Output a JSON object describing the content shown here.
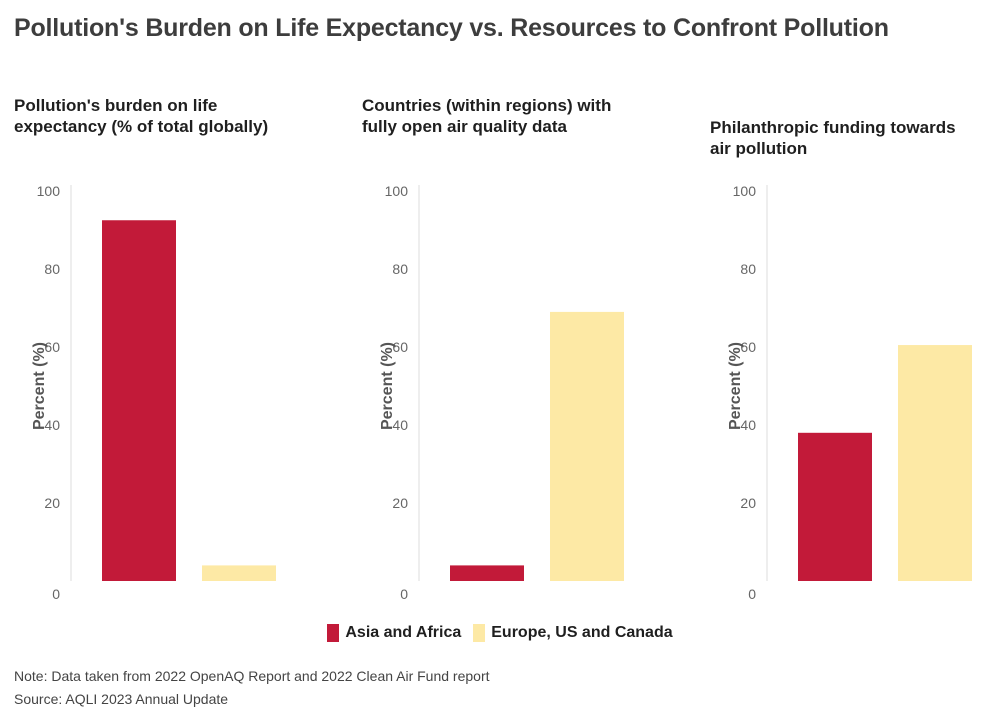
{
  "title": "Pollution's Burden on Life Expectancy vs. Resources to Confront Pollution",
  "legend": {
    "items": [
      {
        "label": "Asia and Africa",
        "color": "#c21a39"
      },
      {
        "label": "Europe, US and Canada",
        "color": "#fde9a5"
      }
    ]
  },
  "notes": {
    "note": "Note: Data taken from 2022 OpenAQ Report and 2022 Clean Air Fund report",
    "source": "Source: AQLI 2023 Annual Update"
  },
  "chart_data": [
    {
      "type": "bar",
      "title": "Pollution's burden on life expectancy (% of total globally)",
      "categories": [
        "Asia and Africa",
        "Europe, US and Canada"
      ],
      "values": [
        92.5,
        4
      ],
      "ylabel": "Percent (%)",
      "ylim": [
        0,
        100
      ],
      "yticks": [
        0,
        20,
        40,
        60,
        80,
        100
      ]
    },
    {
      "type": "bar",
      "title": "Countries (within regions) with fully open air quality data",
      "categories": [
        "Asia and Africa",
        "Europe, US and Canada"
      ],
      "values": [
        4,
        69
      ],
      "ylabel": "Percent (%)",
      "ylim": [
        0,
        100
      ],
      "yticks": [
        0,
        20,
        40,
        60,
        80,
        100
      ]
    },
    {
      "type": "bar",
      "title": "Philanthropic funding towards air pollution",
      "categories": [
        "Asia and Africa",
        "Europe, US and Canada"
      ],
      "values": [
        38,
        60.5
      ],
      "ylabel": "Percent (%)",
      "ylim": [
        0,
        100
      ],
      "yticks": [
        0,
        20,
        40,
        60,
        80,
        100
      ]
    }
  ]
}
